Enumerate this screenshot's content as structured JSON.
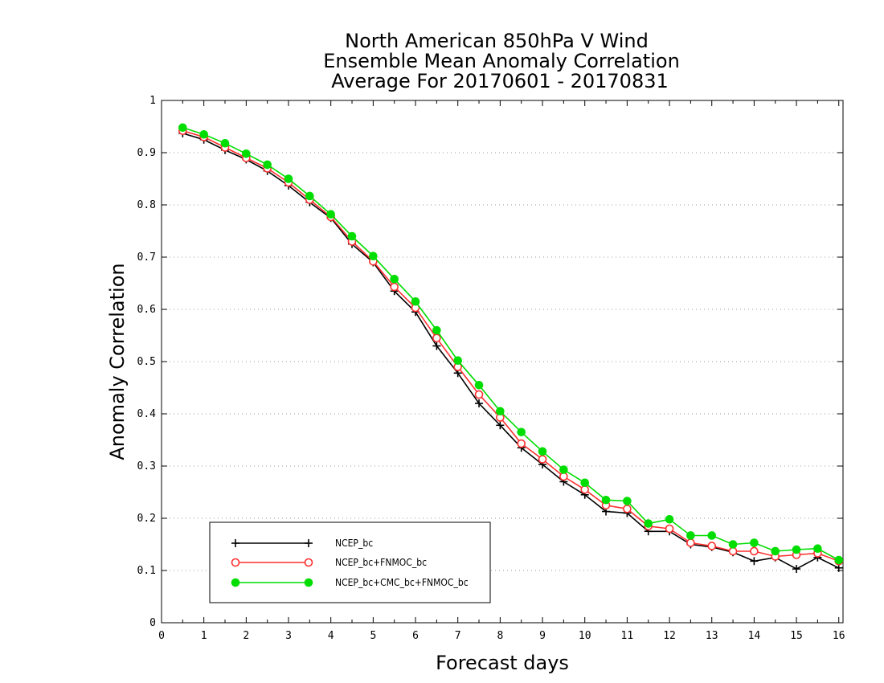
{
  "chart_data": {
    "type": "line",
    "title_lines": [
      "North American 850hPa V Wind",
      "Ensemble Mean Anomaly Correlation",
      "Average For 20170601 - 20170831"
    ],
    "xlabel": "Forecast days",
    "ylabel": "Anomaly Correlation",
    "xlim": [
      0,
      16.1
    ],
    "ylim": [
      0,
      1
    ],
    "xticks": [
      0,
      1,
      2,
      3,
      4,
      5,
      6,
      7,
      8,
      9,
      10,
      11,
      12,
      13,
      14,
      15,
      16
    ],
    "xtick_labels": [
      "0",
      "1",
      "2",
      "3",
      "4",
      "5",
      "6",
      "7",
      "8",
      "9",
      "10",
      "11",
      "12",
      "13",
      "14",
      "15",
      "16"
    ],
    "yticks": [
      0,
      0.1,
      0.2,
      0.3,
      0.4,
      0.5,
      0.6,
      0.7,
      0.8,
      0.9,
      1
    ],
    "ytick_labels": [
      "0",
      "0.1",
      "0.2",
      "0.3",
      "0.4",
      "0.5",
      "0.6",
      "0.7",
      "0.8",
      "0.9",
      "1"
    ],
    "grid": "horizontal dotted",
    "legend_position": "bottom-left",
    "x": [
      0.5,
      1,
      1.5,
      2,
      2.5,
      3,
      3.5,
      4,
      4.5,
      5,
      5.5,
      6,
      6.5,
      7,
      7.5,
      8,
      8.5,
      9,
      9.5,
      10,
      10.5,
      11,
      11.5,
      12,
      12.5,
      13,
      13.5,
      14,
      14.5,
      15,
      15.5,
      16
    ],
    "series": [
      {
        "name": "NCEP_bc",
        "color": "#000000",
        "marker": "plus",
        "values": [
          0.937,
          0.925,
          0.905,
          0.887,
          0.865,
          0.837,
          0.805,
          0.775,
          0.725,
          0.69,
          0.635,
          0.595,
          0.53,
          0.478,
          0.42,
          0.378,
          0.335,
          0.303,
          0.27,
          0.245,
          0.213,
          0.21,
          0.175,
          0.175,
          0.15,
          0.145,
          0.135,
          0.118,
          0.125,
          0.103,
          0.125,
          0.105
        ]
      },
      {
        "name": "NCEP_bc+FNMOC_bc",
        "color": "#ff3030",
        "marker": "open-circle",
        "values": [
          0.942,
          0.93,
          0.91,
          0.89,
          0.87,
          0.843,
          0.81,
          0.777,
          0.73,
          0.692,
          0.643,
          0.603,
          0.545,
          0.49,
          0.437,
          0.393,
          0.343,
          0.313,
          0.28,
          0.255,
          0.225,
          0.218,
          0.185,
          0.18,
          0.153,
          0.147,
          0.137,
          0.137,
          0.127,
          0.13,
          0.133,
          0.118
        ]
      },
      {
        "name": "NCEP_bc+CMC_bc+FNMOC_bc",
        "color": "#00dd00",
        "marker": "filled-circle",
        "values": [
          0.948,
          0.935,
          0.918,
          0.898,
          0.877,
          0.85,
          0.817,
          0.782,
          0.74,
          0.702,
          0.658,
          0.615,
          0.56,
          0.502,
          0.455,
          0.405,
          0.365,
          0.328,
          0.293,
          0.268,
          0.235,
          0.233,
          0.19,
          0.198,
          0.167,
          0.167,
          0.15,
          0.153,
          0.137,
          0.14,
          0.142,
          0.12
        ]
      }
    ]
  }
}
